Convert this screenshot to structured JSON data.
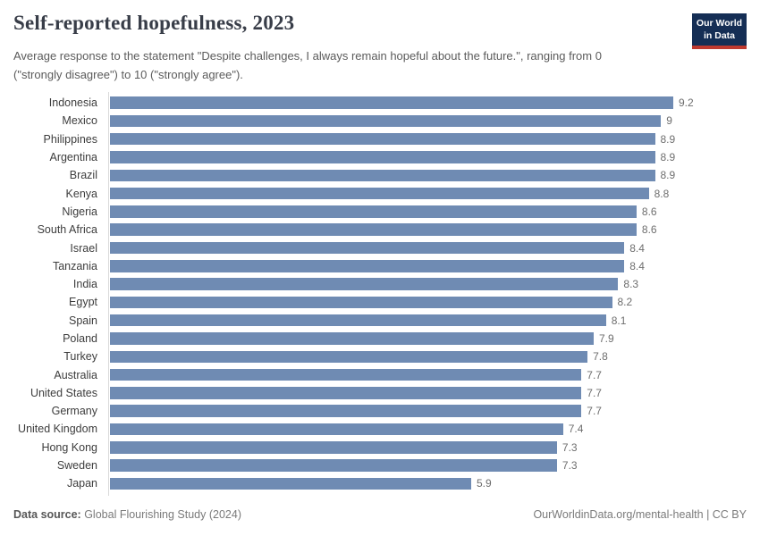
{
  "header": {
    "title": "Self-reported hopefulness, 2023",
    "subtitle": "Average response to the statement \"Despite challenges, I always remain hopeful about the future.\", ranging from 0 (\"strongly disagree\") to 10 (\"strongly agree\").",
    "logo": {
      "line1": "Our World",
      "line2": "in Data"
    }
  },
  "chart_data": {
    "type": "bar",
    "orientation": "horizontal",
    "title": "Self-reported hopefulness, 2023",
    "xlabel": "",
    "ylabel": "",
    "xlim": [
      0,
      9.2
    ],
    "grid": false,
    "legend": "none",
    "bar_color": "#6f8bb3",
    "categories": [
      "Indonesia",
      "Mexico",
      "Philippines",
      "Argentina",
      "Brazil",
      "Kenya",
      "Nigeria",
      "South Africa",
      "Israel",
      "Tanzania",
      "India",
      "Egypt",
      "Spain",
      "Poland",
      "Turkey",
      "Australia",
      "United States",
      "Germany",
      "United Kingdom",
      "Hong Kong",
      "Sweden",
      "Japan"
    ],
    "values": [
      9.2,
      9,
      8.9,
      8.9,
      8.9,
      8.8,
      8.6,
      8.6,
      8.4,
      8.4,
      8.3,
      8.2,
      8.1,
      7.9,
      7.8,
      7.7,
      7.7,
      7.7,
      7.4,
      7.3,
      7.3,
      5.9
    ],
    "value_labels": [
      "9.2",
      "9",
      "8.9",
      "8.9",
      "8.9",
      "8.8",
      "8.6",
      "8.6",
      "8.4",
      "8.4",
      "8.3",
      "8.2",
      "8.1",
      "7.9",
      "7.8",
      "7.7",
      "7.7",
      "7.7",
      "7.4",
      "7.3",
      "7.3",
      "5.9"
    ]
  },
  "footer": {
    "source_label": "Data source:",
    "source_value": " Global Flourishing Study (2024)",
    "credit": "OurWorldinData.org/mental-health | CC BY"
  },
  "colors": {
    "bar": "#6f8bb3",
    "axis_line": "#d9d9d9",
    "title_text": "#383d48",
    "subtitle_text": "#5b5b5b",
    "country_label": "#3d3d3d",
    "value_label": "#6e6e6e",
    "logo_background": "#152e55",
    "logo_accent": "#bf392f",
    "footer_text": "#7a7a7a"
  }
}
